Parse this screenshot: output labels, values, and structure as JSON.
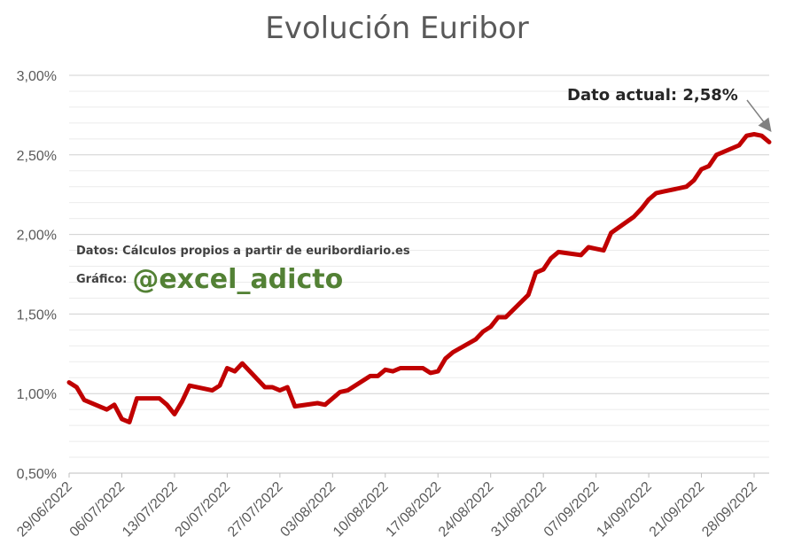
{
  "chart_data": {
    "type": "line",
    "title": "Evolución Euribor",
    "ylim": [
      0.5,
      3.0
    ],
    "y_ticks": [
      "0,50%",
      "1,00%",
      "1,50%",
      "2,00%",
      "2,50%",
      "3,00%"
    ],
    "x_ticks": [
      "29/06/2022",
      "06/07/2022",
      "13/07/2022",
      "20/07/2022",
      "27/07/2022",
      "03/08/2022",
      "10/08/2022",
      "17/08/2022",
      "24/08/2022",
      "31/08/2022",
      "07/09/2022",
      "14/09/2022",
      "21/09/2022",
      "28/09/2022"
    ],
    "grid": true,
    "legend": "none",
    "line_color": "#C00000",
    "series": [
      {
        "x": [
          "29/06/2022",
          "30/06/2022",
          "01/07/2022",
          "04/07/2022",
          "05/07/2022",
          "06/07/2022",
          "07/07/2022",
          "08/07/2022",
          "11/07/2022",
          "12/07/2022",
          "13/07/2022",
          "14/07/2022",
          "15/07/2022",
          "18/07/2022",
          "19/07/2022",
          "20/07/2022",
          "21/07/2022",
          "22/07/2022",
          "25/07/2022",
          "26/07/2022",
          "27/07/2022",
          "28/07/2022",
          "29/07/2022",
          "01/08/2022",
          "02/08/2022",
          "03/08/2022",
          "04/08/2022",
          "05/08/2022",
          "08/08/2022",
          "09/08/2022",
          "10/08/2022",
          "11/08/2022",
          "12/08/2022",
          "15/08/2022",
          "16/08/2022",
          "17/08/2022",
          "18/08/2022",
          "19/08/2022",
          "22/08/2022",
          "23/08/2022",
          "24/08/2022",
          "25/08/2022",
          "26/08/2022",
          "29/08/2022",
          "30/08/2022",
          "31/08/2022",
          "01/09/2022",
          "02/09/2022",
          "05/09/2022",
          "06/09/2022",
          "07/09/2022",
          "08/09/2022",
          "09/09/2022",
          "12/09/2022",
          "13/09/2022",
          "14/09/2022",
          "15/09/2022",
          "16/09/2022",
          "19/09/2022",
          "20/09/2022",
          "21/09/2022",
          "22/09/2022",
          "23/09/2022",
          "26/09/2022",
          "27/09/2022",
          "28/09/2022",
          "29/09/2022",
          "30/09/2022"
        ],
        "values": [
          1.07,
          1.04,
          0.96,
          0.9,
          0.93,
          0.84,
          0.82,
          0.97,
          0.97,
          0.93,
          0.87,
          0.95,
          1.05,
          1.02,
          1.05,
          1.16,
          1.14,
          1.19,
          1.04,
          1.04,
          1.02,
          1.04,
          0.92,
          0.94,
          0.93,
          0.97,
          1.01,
          1.02,
          1.11,
          1.11,
          1.15,
          1.14,
          1.16,
          1.16,
          1.13,
          1.14,
          1.22,
          1.26,
          1.34,
          1.39,
          1.42,
          1.48,
          1.48,
          1.62,
          1.76,
          1.78,
          1.85,
          1.89,
          1.87,
          1.92,
          1.91,
          1.9,
          2.01,
          2.11,
          2.16,
          2.22,
          2.26,
          2.27,
          2.3,
          2.34,
          2.41,
          2.43,
          2.5,
          2.56,
          2.62,
          2.63,
          2.62,
          2.58
        ]
      }
    ],
    "annotation": "Dato actual: 2,58%"
  },
  "source_note": "Datos: Cálculos propios a partir de euribordiario.es",
  "credit_label": "Gráfico:",
  "credit_handle": "@excel_adicto"
}
